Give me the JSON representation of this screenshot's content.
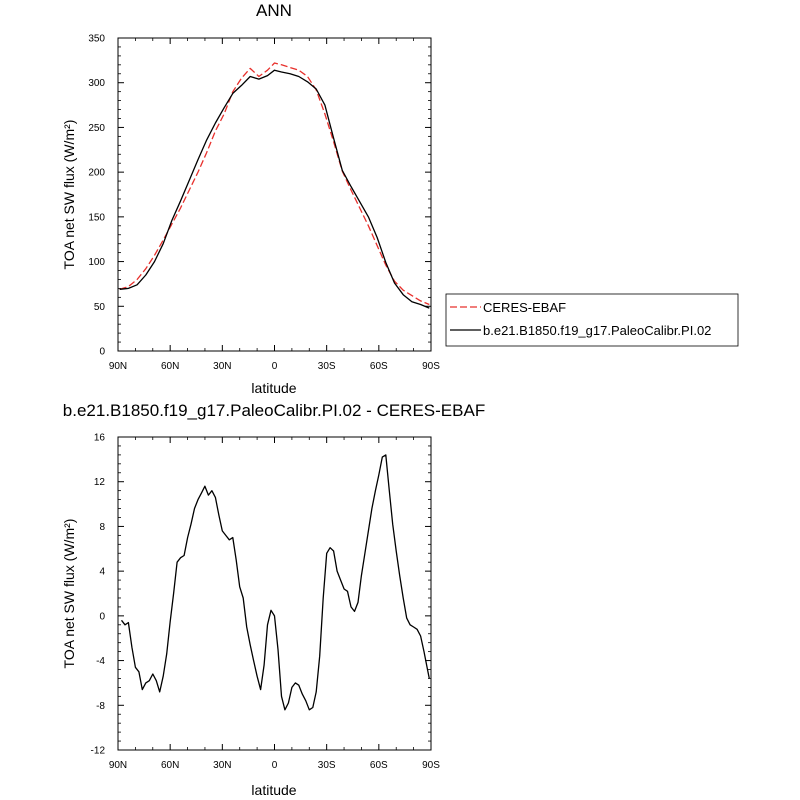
{
  "chart_data": [
    {
      "type": "line",
      "title": "ANN",
      "xlabel": "latitude",
      "ylabel": "TOA net SW flux (W/m²)",
      "xlim": [
        90,
        -90
      ],
      "ylim": [
        0,
        350
      ],
      "xticks": [
        90,
        60,
        30,
        0,
        -30,
        -60,
        -90
      ],
      "xtick_labels": [
        "90N",
        "60N",
        "30N",
        "0",
        "30S",
        "60S",
        "90S"
      ],
      "yticks": [
        0,
        50,
        100,
        150,
        200,
        250,
        300,
        350
      ],
      "ytick_labels": [
        "0",
        "50",
        "100",
        "150",
        "200",
        "250",
        "300",
        "350"
      ],
      "legend": "right",
      "series": [
        {
          "name": "CERES-EBAF",
          "color": "#e8302c",
          "style": "dashed",
          "x": [
            89,
            84,
            79,
            74,
            69,
            64,
            59,
            54,
            49,
            44,
            39,
            34,
            29,
            24,
            19,
            14,
            9,
            4,
            0,
            -4,
            -9,
            -14,
            -19,
            -24,
            -29,
            -34,
            -39,
            -44,
            -49,
            -54,
            -59,
            -64,
            -69,
            -74,
            -79,
            -84,
            -89
          ],
          "values": [
            69,
            72,
            80,
            92,
            107,
            124,
            142,
            160,
            180,
            200,
            222,
            246,
            265,
            290,
            305,
            316,
            307,
            314,
            322,
            320,
            317,
            314,
            307,
            292,
            265,
            234,
            201,
            180,
            160,
            140,
            118,
            96,
            78,
            68,
            62,
            56,
            52
          ]
        },
        {
          "name": "b.e21.B1850.f19_g17.PaleoCalibr.PI.02",
          "color": "#000000",
          "style": "solid",
          "x": [
            89,
            84,
            79,
            74,
            69,
            64,
            59,
            54,
            49,
            44,
            39,
            34,
            29,
            24,
            19,
            14,
            9,
            4,
            0,
            -4,
            -9,
            -14,
            -19,
            -24,
            -29,
            -34,
            -39,
            -44,
            -49,
            -54,
            -59,
            -64,
            -69,
            -74,
            -79,
            -84,
            -89
          ],
          "values": [
            69,
            70,
            74,
            85,
            100,
            120,
            146,
            168,
            191,
            214,
            236,
            255,
            272,
            288,
            297,
            307,
            304,
            308,
            314,
            312,
            310,
            307,
            301,
            293,
            275,
            238,
            202,
            184,
            167,
            150,
            127,
            99,
            76,
            63,
            55,
            52,
            48
          ]
        }
      ]
    },
    {
      "type": "line",
      "title": "b.e21.B1850.f19_g17.PaleoCalibr.PI.02 - CERES-EBAF",
      "xlabel": "latitude",
      "ylabel": "TOA net SW flux (W/m²)",
      "xlim": [
        90,
        -90
      ],
      "ylim": [
        -12,
        16
      ],
      "xticks": [
        90,
        60,
        30,
        0,
        -30,
        -60,
        -90
      ],
      "xtick_labels": [
        "90N",
        "60N",
        "30N",
        "0",
        "30S",
        "60S",
        "90S"
      ],
      "yticks": [
        -12,
        -8,
        -4,
        0,
        4,
        8,
        12,
        16
      ],
      "ytick_labels": [
        "-12",
        "-8",
        "-4",
        "0",
        "4",
        "8",
        "12",
        "16"
      ],
      "series": [
        {
          "color": "#000000",
          "style": "solid",
          "x": [
            88,
            86,
            84,
            82,
            80,
            78,
            76,
            74,
            72,
            70,
            68,
            66,
            64,
            62,
            60,
            58,
            56,
            54,
            52,
            50,
            48,
            46,
            44,
            42,
            40,
            38,
            36,
            34,
            32,
            30,
            28,
            26,
            24,
            22,
            20,
            18,
            16,
            14,
            12,
            10,
            8,
            6,
            4,
            2,
            0,
            -2,
            -4,
            -6,
            -8,
            -10,
            -12,
            -14,
            -16,
            -18,
            -20,
            -22,
            -24,
            -26,
            -28,
            -30,
            -32,
            -34,
            -36,
            -38,
            -40,
            -42,
            -44,
            -46,
            -48,
            -50,
            -52,
            -54,
            -56,
            -58,
            -60,
            -62,
            -64,
            -66,
            -68,
            -70,
            -72,
            -74,
            -76,
            -78,
            -80,
            -82,
            -84,
            -86,
            -88,
            -89
          ],
          "values": [
            -0.4,
            -0.8,
            -0.6,
            -2.8,
            -4.6,
            -5.0,
            -6.6,
            -6.0,
            -5.8,
            -5.2,
            -5.8,
            -6.8,
            -5.4,
            -3.4,
            -0.5,
            2.0,
            4.8,
            5.2,
            5.4,
            7.0,
            8.2,
            9.6,
            10.4,
            11.0,
            11.6,
            10.8,
            11.2,
            10.6,
            9.0,
            7.6,
            7.2,
            6.8,
            7.0,
            5.0,
            2.6,
            1.6,
            -1.0,
            -2.6,
            -4.0,
            -5.4,
            -6.6,
            -4.4,
            -0.8,
            0.5,
            0.0,
            -3.0,
            -7.2,
            -8.4,
            -7.8,
            -6.4,
            -6.0,
            -6.2,
            -7.0,
            -7.6,
            -8.4,
            -8.2,
            -6.8,
            -3.6,
            1.6,
            5.6,
            6.1,
            5.8,
            4.0,
            3.2,
            2.4,
            2.2,
            0.8,
            0.4,
            1.2,
            3.6,
            5.6,
            7.6,
            9.6,
            11.2,
            12.6,
            14.2,
            14.4,
            11.2,
            8.2,
            5.8,
            3.6,
            1.6,
            -0.2,
            -0.8,
            -1.0,
            -1.2,
            -1.8,
            -3.2,
            -4.8,
            -5.6
          ]
        }
      ]
    }
  ]
}
